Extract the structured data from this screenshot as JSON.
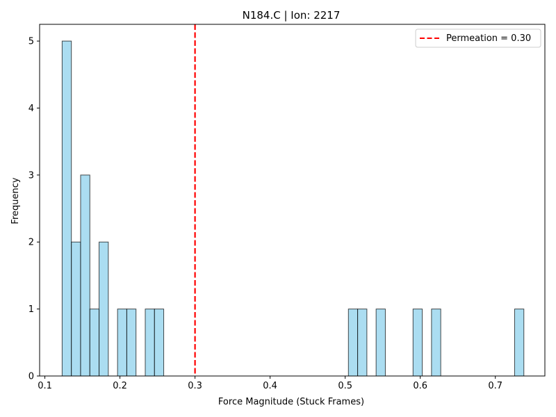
{
  "chart_data": {
    "type": "bar",
    "title": "N184.C | Ion: 2217",
    "xlabel": "Force Magnitude (Stuck Frames)",
    "ylabel": "Frequency",
    "xlim": [
      0.093,
      0.766
    ],
    "ylim": [
      0,
      5.25
    ],
    "xticks": [
      0.1,
      0.2,
      0.3,
      0.4,
      0.5,
      0.6,
      0.7
    ],
    "xtick_labels": [
      "0.1",
      "0.2",
      "0.3",
      "0.4",
      "0.5",
      "0.6",
      "0.7"
    ],
    "yticks": [
      0,
      1,
      2,
      3,
      4,
      5
    ],
    "ytick_labels": [
      "0",
      "1",
      "2",
      "3",
      "4",
      "5"
    ],
    "bin_width": 0.0123,
    "bins": [
      {
        "x0": 0.123,
        "count": 5
      },
      {
        "x0": 0.1353,
        "count": 2
      },
      {
        "x0": 0.1476,
        "count": 3
      },
      {
        "x0": 0.1599,
        "count": 1
      },
      {
        "x0": 0.1722,
        "count": 2
      },
      {
        "x0": 0.1968,
        "count": 1
      },
      {
        "x0": 0.2091,
        "count": 1
      },
      {
        "x0": 0.2337,
        "count": 1
      },
      {
        "x0": 0.246,
        "count": 1
      },
      {
        "x0": 0.5043,
        "count": 1
      },
      {
        "x0": 0.5166,
        "count": 1
      },
      {
        "x0": 0.5412,
        "count": 1
      },
      {
        "x0": 0.5904,
        "count": 1
      },
      {
        "x0": 0.615,
        "count": 1
      },
      {
        "x0": 0.7257,
        "count": 1
      }
    ],
    "bar_color": "#87ceeb",
    "bar_edge_color": "#000000",
    "reference_line": {
      "x": 0.3,
      "label": "Permeation = 0.30",
      "color": "#ff0000",
      "style": "dashed"
    },
    "legend_position": "top-right",
    "grid": false
  }
}
